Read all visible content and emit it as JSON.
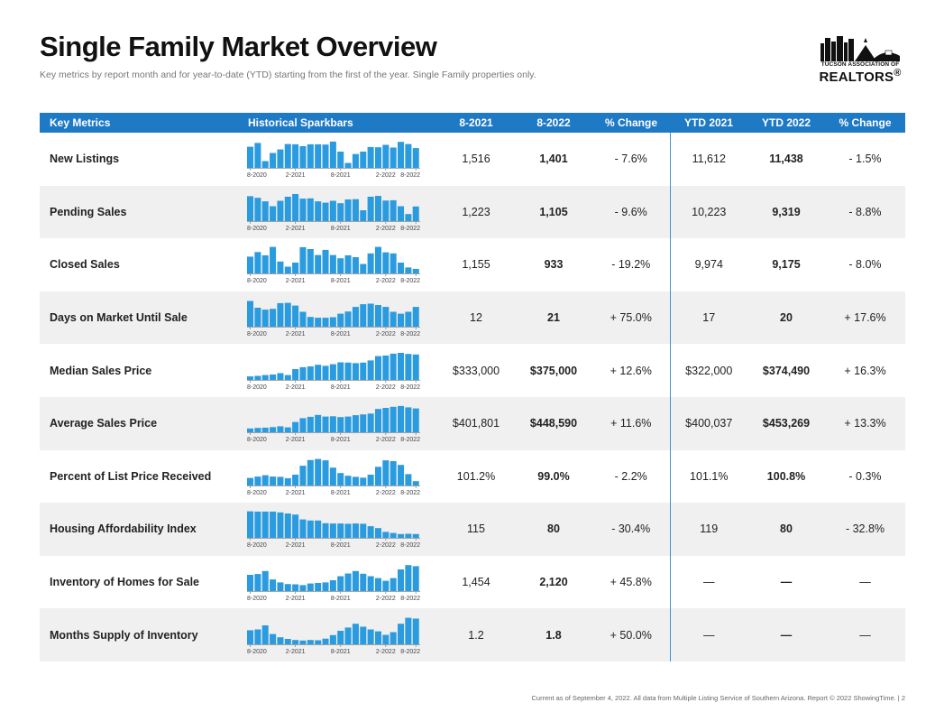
{
  "header": {
    "title": "Single Family Market Overview",
    "subtitle": "Key metrics by report month and for year-to-date (YTD) starting from the first of the year. Single Family properties only."
  },
  "logo": {
    "line1": "TUCSON ASSOCIATION OF",
    "line2": "REALTORS",
    "mark": "®"
  },
  "columns": [
    "Key Metrics",
    "Historical Sparkbars",
    "8-2021",
    "8-2022",
    "% Change",
    "YTD 2021",
    "YTD 2022",
    "% Change"
  ],
  "spark_ticks": [
    "8-2020",
    "2-2021",
    "8-2021",
    "2-2022",
    "8-2022"
  ],
  "colors": {
    "accent": "#1f7ac5",
    "bar": "#2b9be0",
    "row_shade": "#f0f0f0"
  },
  "chart_data": {
    "type": "table",
    "x_period": "8-2020 to 8-2022 (monthly)",
    "rows": [
      {
        "metric": "New Listings",
        "m2021": "1,516",
        "m2022": "1,401",
        "change": "- 7.6%",
        "ytd2021": "11,612",
        "ytd2022": "11,438",
        "ytd_change": "- 1.5%",
        "spark": [
          0.78,
          0.92,
          0.25,
          0.55,
          0.68,
          0.88,
          0.87,
          0.8,
          0.87,
          0.87,
          0.86,
          0.97,
          0.6,
          0.18,
          0.51,
          0.6,
          0.77,
          0.76,
          0.85,
          0.75,
          0.96,
          0.88,
          0.73
        ]
      },
      {
        "metric": "Pending Sales",
        "m2021": "1,223",
        "m2022": "1,105",
        "change": "- 9.6%",
        "ytd2021": "10,223",
        "ytd2022": "9,319",
        "ytd_change": "- 8.8%",
        "spark": [
          0.92,
          0.86,
          0.73,
          0.55,
          0.75,
          0.9,
          1.0,
          0.83,
          0.84,
          0.73,
          0.68,
          0.75,
          0.66,
          0.8,
          0.81,
          0.4,
          0.9,
          0.93,
          0.76,
          0.77,
          0.55,
          0.26,
          0.54
        ]
      },
      {
        "metric": "Closed Sales",
        "m2021": "1,155",
        "m2022": "933",
        "change": "- 19.2%",
        "ytd2021": "9,974",
        "ytd2022": "9,175",
        "ytd_change": "- 8.0%",
        "spark": [
          0.62,
          0.79,
          0.67,
          0.98,
          0.44,
          0.25,
          0.4,
          0.97,
          0.9,
          0.68,
          0.87,
          0.68,
          0.56,
          0.67,
          0.6,
          0.35,
          0.74,
          0.98,
          0.78,
          0.74,
          0.4,
          0.22,
          0.17
        ]
      },
      {
        "metric": "Days on Market Until Sale",
        "m2021": "12",
        "m2022": "21",
        "change": "+ 75.0%",
        "ytd2021": "17",
        "ytd2022": "20",
        "ytd_change": "+ 17.6%",
        "spark": [
          0.95,
          0.7,
          0.63,
          0.66,
          0.87,
          0.88,
          0.78,
          0.55,
          0.36,
          0.33,
          0.33,
          0.35,
          0.48,
          0.56,
          0.73,
          0.83,
          0.85,
          0.8,
          0.73,
          0.55,
          0.48,
          0.55,
          0.73
        ]
      },
      {
        "metric": "Median Sales Price",
        "m2021": "$333,000",
        "m2022": "$375,000",
        "change": "+ 12.6%",
        "ytd2021": "$322,000",
        "ytd2022": "$374,490",
        "ytd_change": "+ 16.3%",
        "spark": [
          0.13,
          0.15,
          0.18,
          0.2,
          0.25,
          0.18,
          0.4,
          0.47,
          0.5,
          0.56,
          0.52,
          0.58,
          0.65,
          0.64,
          0.62,
          0.64,
          0.72,
          0.88,
          0.9,
          0.97,
          1.0,
          0.96,
          0.94
        ]
      },
      {
        "metric": "Average Sales Price",
        "m2021": "$401,801",
        "m2022": "$448,590",
        "change": "+ 11.6%",
        "ytd2021": "$400,037",
        "ytd2022": "$453,269",
        "ytd_change": "+ 13.3%",
        "spark": [
          0.14,
          0.16,
          0.17,
          0.19,
          0.22,
          0.18,
          0.38,
          0.52,
          0.57,
          0.64,
          0.58,
          0.59,
          0.56,
          0.58,
          0.63,
          0.66,
          0.69,
          0.86,
          0.9,
          0.94,
          0.97,
          0.92,
          0.88
        ]
      },
      {
        "metric": "Percent of List Price Received",
        "m2021": "101.2%",
        "m2022": "99.0%",
        "change": "- 2.2%",
        "ytd2021": "101.1%",
        "ytd2022": "100.8%",
        "ytd_change": "- 0.3%",
        "spark": [
          0.28,
          0.33,
          0.38,
          0.33,
          0.32,
          0.27,
          0.4,
          0.73,
          0.94,
          0.98,
          0.93,
          0.66,
          0.46,
          0.36,
          0.32,
          0.29,
          0.4,
          0.69,
          0.93,
          0.9,
          0.76,
          0.42,
          0.16
        ]
      },
      {
        "metric": "Housing Affordability Index",
        "m2021": "115",
        "m2022": "80",
        "change": "- 30.4%",
        "ytd2021": "119",
        "ytd2022": "80",
        "ytd_change": "- 32.8%",
        "spark": [
          0.98,
          0.97,
          0.97,
          0.97,
          0.94,
          0.9,
          0.86,
          0.68,
          0.64,
          0.64,
          0.54,
          0.53,
          0.53,
          0.52,
          0.53,
          0.52,
          0.43,
          0.36,
          0.22,
          0.18,
          0.14,
          0.15,
          0.14
        ]
      },
      {
        "metric": "Inventory of Homes for Sale",
        "m2021": "1,454",
        "m2022": "2,120",
        "change": "+ 45.8%",
        "ytd2021": "—",
        "ytd2022": "—",
        "ytd_change": "—",
        "spark": [
          0.6,
          0.63,
          0.74,
          0.43,
          0.32,
          0.26,
          0.25,
          0.22,
          0.28,
          0.3,
          0.32,
          0.4,
          0.55,
          0.65,
          0.74,
          0.64,
          0.55,
          0.48,
          0.38,
          0.48,
          0.8,
          0.96,
          0.92
        ]
      },
      {
        "metric": "Months Supply of Inventory",
        "m2021": "1.2",
        "m2022": "1.8",
        "change": "+ 50.0%",
        "ytd2021": "—",
        "ytd2022": "—",
        "ytd_change": "—",
        "spark": [
          0.52,
          0.55,
          0.7,
          0.38,
          0.26,
          0.2,
          0.16,
          0.14,
          0.16,
          0.15,
          0.21,
          0.34,
          0.5,
          0.62,
          0.76,
          0.65,
          0.55,
          0.48,
          0.35,
          0.45,
          0.76,
          0.98,
          0.95
        ]
      }
    ]
  },
  "footer": "Current as of September 4, 2022. All data from Multiple Listing Service of Southern Arizona. Report © 2022 ShowingTime.  |  2"
}
